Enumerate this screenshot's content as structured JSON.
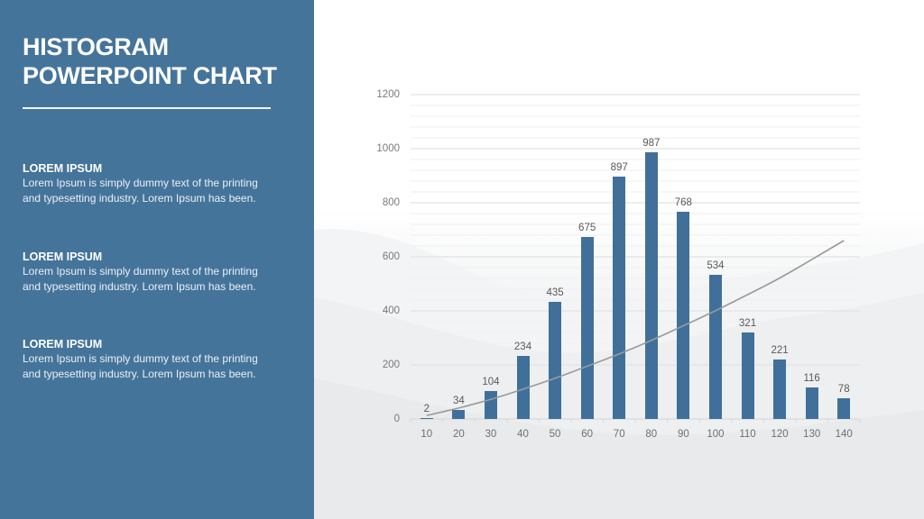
{
  "sidebar": {
    "title_line1": "HISTOGRAM",
    "title_line2": "POWERPOINT CHART",
    "blocks": [
      {
        "heading": "LOREM IPSUM",
        "text_line1": "Lorem Ipsum is simply dummy text of the printing",
        "text_line2": "and typesetting industry. Lorem Ipsum has been."
      },
      {
        "heading": "LOREM IPSUM",
        "text_line1": "Lorem Ipsum is simply dummy text of the printing",
        "text_line2": "and typesetting industry. Lorem Ipsum has been."
      },
      {
        "heading": "LOREM IPSUM",
        "text_line1": "Lorem Ipsum is simply dummy text of the printing",
        "text_line2": "and typesetting industry. Lorem Ipsum has been."
      }
    ]
  },
  "colors": {
    "sidebar": "#45749b",
    "bar": "#40709a",
    "trendline": "#9a9a9a",
    "gridline": "#e6e6e6"
  },
  "chart_data": {
    "type": "bar",
    "title": "",
    "xlabel": "",
    "ylabel": "",
    "categories": [
      "10",
      "20",
      "30",
      "40",
      "50",
      "60",
      "70",
      "80",
      "90",
      "100",
      "110",
      "120",
      "130",
      "140"
    ],
    "values": [
      2,
      34,
      104,
      234,
      435,
      675,
      897,
      987,
      768,
      534,
      321,
      221,
      116,
      78
    ],
    "data_labels": [
      "2",
      "34",
      "104",
      "234",
      "435",
      "675",
      "897",
      "987",
      "768",
      "534",
      "321",
      "221",
      "116",
      "78"
    ],
    "yticks": [
      "0",
      "200",
      "400",
      "600",
      "800",
      "1000",
      "1200"
    ],
    "ylim": [
      0,
      1200
    ],
    "grid": true,
    "minor_grid_step": 40,
    "legend": "none",
    "trendline": {
      "type": "polynomial",
      "values": [
        13,
        40,
        72,
        110,
        150,
        195,
        240,
        290,
        345,
        400,
        460,
        520,
        590,
        660
      ]
    }
  }
}
